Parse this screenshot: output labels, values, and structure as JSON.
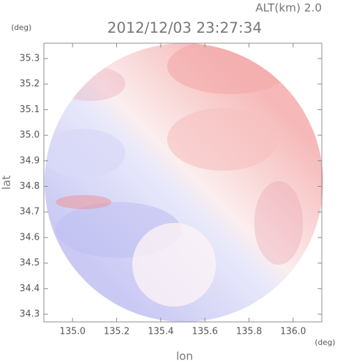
{
  "chart_data": {
    "type": "radar-image",
    "title": "2012/12/03 23:27:34",
    "altitude_label": "ALT(km) 2.0",
    "x_label": "lon",
    "y_label": "lat",
    "x_unit": "(deg)",
    "y_unit": "(deg)",
    "xlim": [
      134.87,
      136.13
    ],
    "ylim": [
      34.27,
      35.36
    ],
    "xticks": [
      {
        "value": 135,
        "label": "135.0"
      },
      135.2,
      135.4,
      135.6,
      135.8,
      {
        "value": 136,
        "label": "136.0"
      }
    ],
    "yticks": [
      34.3,
      34.4,
      34.5,
      34.6,
      34.7,
      34.8,
      34.9,
      {
        "value": 35,
        "label": "35.0"
      },
      35.1,
      35.2,
      35.3
    ]
  }
}
